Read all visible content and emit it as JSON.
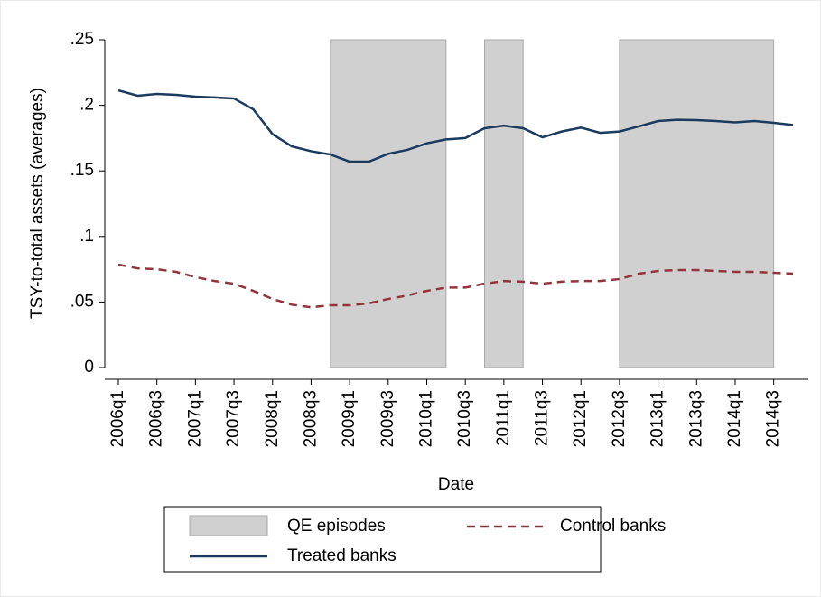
{
  "chart_data": {
    "type": "line",
    "x_label": "Date",
    "y_label": "TSY-to-total assets (averages)",
    "x": [
      "2006q1",
      "2006q2",
      "2006q3",
      "2006q4",
      "2007q1",
      "2007q2",
      "2007q3",
      "2007q4",
      "2008q1",
      "2008q2",
      "2008q3",
      "2008q4",
      "2009q1",
      "2009q2",
      "2009q3",
      "2009q4",
      "2010q1",
      "2010q2",
      "2010q3",
      "2010q4",
      "2011q1",
      "2011q2",
      "2011q3",
      "2011q4",
      "2012q1",
      "2012q2",
      "2012q3",
      "2012q4",
      "2013q1",
      "2013q2",
      "2013q3",
      "2013q4",
      "2014q1",
      "2014q2",
      "2014q3",
      "2014q4"
    ],
    "xticks": [
      "2006q1",
      "2006q3",
      "2007q1",
      "2007q3",
      "2008q1",
      "2008q3",
      "2009q1",
      "2009q3",
      "2010q1",
      "2010q3",
      "2011q1",
      "2011q3",
      "2012q1",
      "2012q3",
      "2013q1",
      "2013q3",
      "2014q1",
      "2014q3"
    ],
    "ylim": [
      0,
      0.25
    ],
    "yticks": [
      0,
      {
        "value": 0.05,
        "label": ".05"
      },
      {
        "value": 0.1,
        "label": ".1"
      },
      {
        "value": 0.15,
        "label": ".15"
      },
      {
        "value": 0.2,
        "label": ".2"
      },
      {
        "value": 0.25,
        "label": ".25"
      }
    ],
    "shaded_regions": {
      "name": "QE episodes",
      "color": "#d0d0d0",
      "ranges": [
        [
          "2008q4",
          "2010q2"
        ],
        [
          "2010q4",
          "2011q2"
        ],
        [
          "2012q3",
          "2014q3"
        ]
      ]
    },
    "series": [
      {
        "name": "Treated banks",
        "color": "#1a3a5e",
        "dash": false,
        "values": [
          0.2114,
          0.2073,
          0.2087,
          0.208,
          0.2066,
          0.206,
          0.2052,
          0.197,
          0.178,
          0.1687,
          0.165,
          0.1625,
          0.157,
          0.157,
          0.163,
          0.166,
          0.171,
          0.174,
          0.175,
          0.1825,
          0.1845,
          0.1825,
          0.1756,
          0.18,
          0.183,
          0.179,
          0.18,
          0.1839,
          0.188,
          0.189,
          0.1887,
          0.188,
          0.187,
          0.188,
          0.1866,
          0.185
        ]
      },
      {
        "name": "Control banks",
        "color": "#90353b",
        "dash": true,
        "values": [
          0.0785,
          0.0757,
          0.075,
          0.073,
          0.069,
          0.066,
          0.064,
          0.0585,
          0.0523,
          0.048,
          0.046,
          0.0475,
          0.0475,
          0.049,
          0.0523,
          0.055,
          0.0585,
          0.061,
          0.061,
          0.064,
          0.066,
          0.0655,
          0.064,
          0.0655,
          0.066,
          0.066,
          0.0675,
          0.0716,
          0.0737,
          0.0744,
          0.0744,
          0.0737,
          0.073,
          0.073,
          0.0723,
          0.0716
        ]
      }
    ],
    "legend_position": "bottom"
  }
}
